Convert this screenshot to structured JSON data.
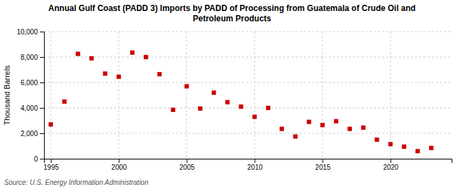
{
  "chart_data": {
    "type": "scatter",
    "title": "Annual Gulf Coast (PADD 3) Imports by PADD of Processing from Guatemala of Crude Oil and\nPetroleum Products",
    "ylabel": "Thousand Barrels",
    "annotations": [
      "Source: U.S. Energy Information Administration"
    ],
    "x": [
      1995,
      1996,
      1997,
      1998,
      1999,
      2000,
      2001,
      2002,
      2003,
      2004,
      2005,
      2006,
      2007,
      2008,
      2009,
      2010,
      2011,
      2012,
      2013,
      2014,
      2015,
      2016,
      2017,
      2018,
      2019,
      2020,
      2021,
      2022,
      2023
    ],
    "values": [
      2700,
      4500,
      8250,
      7900,
      6700,
      6450,
      8350,
      8000,
      6650,
      3850,
      5700,
      3950,
      5200,
      4450,
      4100,
      3300,
      4000,
      2350,
      1750,
      2900,
      2650,
      2950,
      2350,
      2450,
      1500,
      1150,
      950,
      600,
      850
    ],
    "color": "#cc0000",
    "marker": "square",
    "xlim": [
      1994.5,
      2024.5
    ],
    "ylim": [
      0,
      10000
    ],
    "xticks": [
      1995,
      2000,
      2005,
      2010,
      2015,
      2020
    ],
    "yticks": [
      0,
      {
        "value": 2000,
        "label": "2,000"
      },
      {
        "value": 4000,
        "label": "4,000"
      },
      {
        "value": 6000,
        "label": "6,000"
      },
      {
        "value": 8000,
        "label": "8,000"
      },
      {
        "value": 10000,
        "label": "10,000"
      }
    ],
    "grid": true
  }
}
